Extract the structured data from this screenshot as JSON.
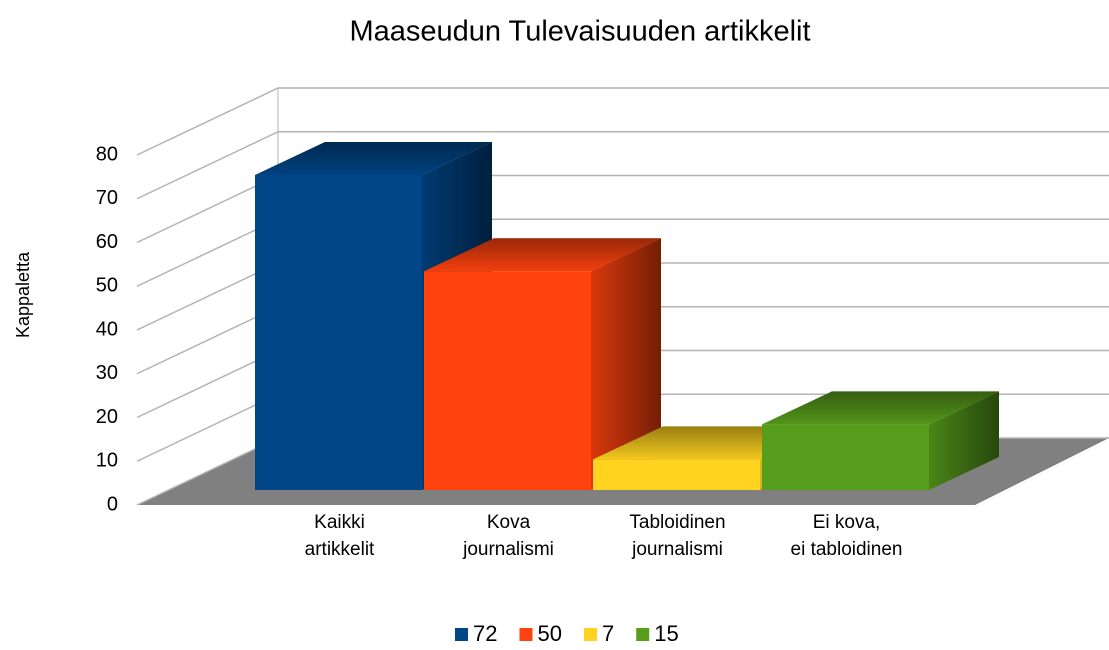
{
  "chart_data": {
    "type": "bar3d",
    "title": "Maaseudun Tulevaisuuden artikkelit",
    "y_label": "Kappaletta",
    "categories": [
      [
        "Kaikki",
        "artikkelit"
      ],
      [
        "Kova",
        "journalismi"
      ],
      [
        "Tabloidinen",
        "journalismi"
      ],
      [
        "Ei kova,",
        "ei tabloidinen"
      ]
    ],
    "values": [
      72,
      50,
      7,
      15
    ],
    "colors": [
      "#004586",
      "#ff420e",
      "#ffd320",
      "#579d1c"
    ],
    "ylim": [
      0,
      80
    ],
    "yticks": [
      0,
      10,
      20,
      30,
      40,
      50,
      60,
      70,
      80
    ],
    "grid": true,
    "legend": "bottom"
  }
}
